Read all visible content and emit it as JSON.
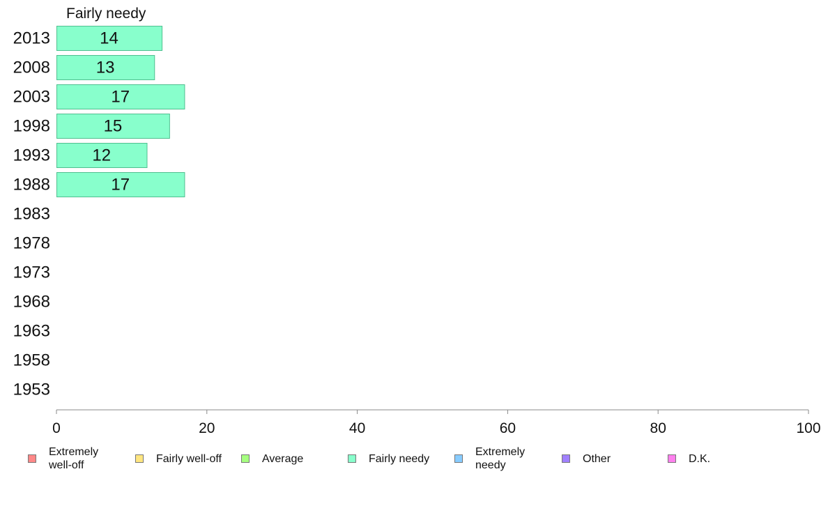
{
  "chart_data": {
    "type": "bar",
    "orientation": "horizontal",
    "title": "Fairly needy",
    "categories": [
      "2013",
      "2008",
      "2003",
      "1998",
      "1993",
      "1988",
      "1983",
      "1978",
      "1973",
      "1968",
      "1963",
      "1958",
      "1953"
    ],
    "values": [
      14,
      13,
      17,
      15,
      12,
      17,
      null,
      null,
      null,
      null,
      null,
      null,
      null
    ],
    "data_labels": [
      "14",
      "13",
      "17",
      "15",
      "12",
      "17",
      "",
      "",
      "",
      "",
      "",
      "",
      ""
    ],
    "xlim": [
      0,
      100
    ],
    "xticks": [
      0,
      20,
      40,
      60,
      80,
      100
    ],
    "grid": false,
    "bar_color": "#88ffcc",
    "bar_border": "#4fbf8f",
    "legend": {
      "placement": "bottom",
      "items": [
        {
          "label": "Extremely\nwell-off",
          "color": "#ff8888"
        },
        {
          "label": "Fairly well-off",
          "color": "#ffe680"
        },
        {
          "label": "Average",
          "color": "#a6ff80"
        },
        {
          "label": "Fairly needy",
          "color": "#88ffcc"
        },
        {
          "label": "Extremely\nneedy",
          "color": "#88ccff"
        },
        {
          "label": "Other",
          "color": "#a080ff"
        },
        {
          "label": "D.K.",
          "color": "#ff80ee"
        }
      ]
    }
  }
}
